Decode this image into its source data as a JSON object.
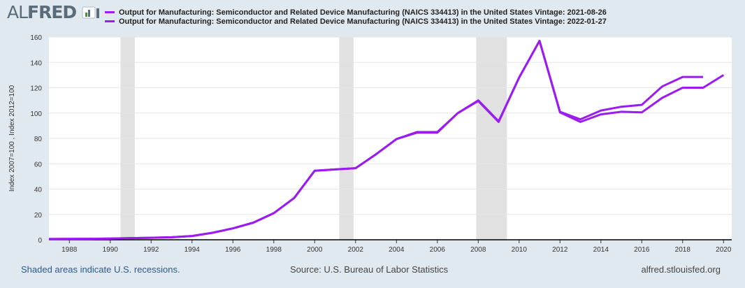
{
  "logo": {
    "al": "AL",
    "fred": "FRED",
    "icon": "fred-bar-chart-icon"
  },
  "colors": {
    "series": "#9a1cf0",
    "recession": "#e1e1e1",
    "grid": "#e6e6e6",
    "background": "#e1e9f0",
    "plot": "#ffffff"
  },
  "footer": {
    "left": "Shaded areas indicate U.S. recessions.",
    "center": "Source: U.S. Bureau of Labor Statistics",
    "right": "alfred.stlouisfed.org"
  },
  "chart_data": {
    "type": "line",
    "ylabel": "Index 2007=100 , Index 2012=100",
    "xlim": [
      1987,
      2020.4
    ],
    "ylim": [
      0,
      160
    ],
    "yticks": [
      0,
      20,
      40,
      60,
      80,
      100,
      120,
      140,
      160
    ],
    "xticks": [
      1988,
      1990,
      1992,
      1994,
      1996,
      1998,
      2000,
      2002,
      2004,
      2006,
      2008,
      2010,
      2012,
      2014,
      2016,
      2018,
      2020
    ],
    "grid": true,
    "legend_position": "top",
    "recessions": [
      [
        1990.5,
        1991.2
      ],
      [
        2001.2,
        2001.9
      ],
      [
        2007.9,
        2009.4
      ]
    ],
    "x": [
      1987,
      1988,
      1989,
      1990,
      1991,
      1992,
      1993,
      1994,
      1995,
      1996,
      1997,
      1998,
      1999,
      2000,
      2001,
      2002,
      2003,
      2004,
      2005,
      2006,
      2007,
      2008,
      2009,
      2010,
      2011,
      2012,
      2013,
      2014,
      2015,
      2016,
      2017,
      2018,
      2019,
      2020
    ],
    "series": [
      {
        "name": "Output for Manufacturing: Semiconductor and Related Device Manufacturing (NAICS 334413) in the United States Vintage: 2021-08-26",
        "values": [
          0.6,
          0.7,
          0.8,
          1.0,
          1.3,
          1.6,
          2.0,
          3.0,
          5.5,
          9.0,
          13.5,
          21,
          33,
          54.5,
          55.5,
          56.5,
          67.5,
          79.5,
          85,
          85,
          100,
          110,
          93.5,
          128,
          157,
          101,
          95,
          102,
          105,
          106.5,
          121,
          128.5,
          128.5,
          null
        ]
      },
      {
        "name": "Output for Manufacturing: Semiconductor and Related Device Manufacturing (NAICS 334413) in the United States Vintage: 2022-01-27",
        "values": [
          0.6,
          0.7,
          0.8,
          1.0,
          1.3,
          1.6,
          2.0,
          3.0,
          5.5,
          9.0,
          13.5,
          21,
          33,
          54.5,
          55.5,
          56.5,
          67.5,
          79.5,
          84.5,
          84.5,
          100,
          109.5,
          93,
          128,
          157,
          100.5,
          93,
          99,
          101,
          100.5,
          112,
          120,
          120,
          130
        ]
      }
    ]
  }
}
